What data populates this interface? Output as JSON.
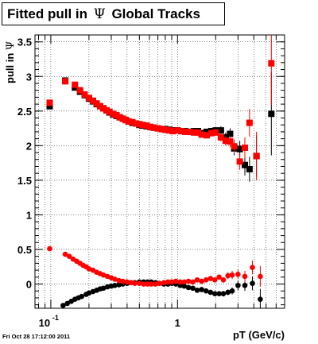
{
  "chart_data": {
    "type": "scatter",
    "title_prefix": "Fitted pull in",
    "title_symbol": "Ψ",
    "title_suffix": "Global Tracks",
    "xlabel": "pT (GeV/c)",
    "ylabel_prefix": "pull in",
    "ylabel_symbol": "Ψ",
    "xscale": "log",
    "xlim": [
      0.075,
      7.0
    ],
    "ylim": [
      -0.35,
      3.6
    ],
    "grid": true,
    "x_ticks": [
      {
        "value": 0.1,
        "base": "10",
        "exp": "-1"
      },
      {
        "value": 1,
        "label": "1"
      }
    ],
    "y_ticks": [
      0,
      0.5,
      1,
      1.5,
      2,
      2.5,
      3,
      3.5
    ],
    "y_tick_labels": [
      "0",
      "0.5",
      "1",
      "1.5",
      "2",
      "2.5",
      "3",
      "3.5"
    ],
    "series": [
      {
        "role": "sigma",
        "color": "#000000",
        "marker": "square",
        "points": [
          [
            0.098,
            2.57
          ],
          [
            0.13,
            2.94
          ],
          [
            0.155,
            2.84
          ],
          [
            0.17,
            2.78
          ],
          [
            0.185,
            2.73
          ],
          [
            0.2,
            2.68
          ],
          [
            0.215,
            2.64
          ],
          [
            0.23,
            2.6
          ],
          [
            0.245,
            2.57
          ],
          [
            0.26,
            2.54
          ],
          [
            0.275,
            2.51
          ],
          [
            0.29,
            2.48
          ],
          [
            0.31,
            2.45
          ],
          [
            0.33,
            2.43
          ],
          [
            0.35,
            2.41
          ],
          [
            0.37,
            2.39
          ],
          [
            0.39,
            2.37
          ],
          [
            0.41,
            2.35
          ],
          [
            0.44,
            2.33
          ],
          [
            0.47,
            2.32
          ],
          [
            0.5,
            2.3
          ],
          [
            0.53,
            2.29
          ],
          [
            0.57,
            2.28
          ],
          [
            0.61,
            2.27
          ],
          [
            0.65,
            2.26
          ],
          [
            0.7,
            2.25
          ],
          [
            0.75,
            2.24
          ],
          [
            0.8,
            2.24
          ],
          [
            0.86,
            2.23
          ],
          [
            0.92,
            2.22
          ],
          [
            1.0,
            2.22
          ],
          [
            1.07,
            2.21
          ],
          [
            1.15,
            2.21
          ],
          [
            1.25,
            2.2
          ],
          [
            1.35,
            2.21
          ],
          [
            1.45,
            2.21
          ],
          [
            1.55,
            2.18
          ],
          [
            1.7,
            2.2
          ],
          [
            1.85,
            2.21
          ],
          [
            2.0,
            2.22
          ],
          [
            2.2,
            2.22
          ],
          [
            2.4,
            2.12
          ],
          [
            2.6,
            2.17
          ],
          [
            2.8,
            1.96
          ],
          [
            3.1,
            1.95
          ],
          [
            3.4,
            1.72
          ],
          [
            3.7,
            1.66
          ],
          [
            4.2,
            1.85
          ],
          [
            5.5,
            2.46
          ]
        ],
        "errors": [
          0.02,
          0.02,
          0.01,
          0.01,
          0.01,
          0.01,
          0.01,
          0.01,
          0.01,
          0.01,
          0.01,
          0.01,
          0.01,
          0.01,
          0.01,
          0.01,
          0.01,
          0.01,
          0.01,
          0.01,
          0.01,
          0.01,
          0.01,
          0.01,
          0.01,
          0.01,
          0.01,
          0.01,
          0.01,
          0.01,
          0.01,
          0.01,
          0.01,
          0.02,
          0.02,
          0.02,
          0.02,
          0.03,
          0.04,
          0.05,
          0.06,
          0.07,
          0.08,
          0.1,
          0.12,
          0.15,
          0.18,
          0.3,
          0.6
        ]
      },
      {
        "role": "sigma",
        "color": "#ff0000",
        "marker": "square",
        "points": [
          [
            0.098,
            2.62
          ],
          [
            0.13,
            2.93
          ],
          [
            0.155,
            2.88
          ],
          [
            0.17,
            2.8
          ],
          [
            0.185,
            2.74
          ],
          [
            0.2,
            2.69
          ],
          [
            0.215,
            2.65
          ],
          [
            0.23,
            2.61
          ],
          [
            0.245,
            2.57
          ],
          [
            0.26,
            2.54
          ],
          [
            0.275,
            2.51
          ],
          [
            0.29,
            2.49
          ],
          [
            0.31,
            2.46
          ],
          [
            0.33,
            2.44
          ],
          [
            0.35,
            2.41
          ],
          [
            0.37,
            2.39
          ],
          [
            0.39,
            2.37
          ],
          [
            0.41,
            2.35
          ],
          [
            0.44,
            2.34
          ],
          [
            0.47,
            2.32
          ],
          [
            0.5,
            2.31
          ],
          [
            0.53,
            2.3
          ],
          [
            0.57,
            2.29
          ],
          [
            0.61,
            2.27
          ],
          [
            0.65,
            2.26
          ],
          [
            0.7,
            2.25
          ],
          [
            0.75,
            2.24
          ],
          [
            0.8,
            2.23
          ],
          [
            0.86,
            2.22
          ],
          [
            0.92,
            2.21
          ],
          [
            1.0,
            2.22
          ],
          [
            1.07,
            2.21
          ],
          [
            1.15,
            2.2
          ],
          [
            1.25,
            2.2
          ],
          [
            1.35,
            2.19
          ],
          [
            1.45,
            2.19
          ],
          [
            1.55,
            2.16
          ],
          [
            1.7,
            2.15
          ],
          [
            1.85,
            2.18
          ],
          [
            2.0,
            2.19
          ],
          [
            2.2,
            2.12
          ],
          [
            2.4,
            2.07
          ],
          [
            2.6,
            2.06
          ],
          [
            2.8,
            1.99
          ],
          [
            3.1,
            1.77
          ],
          [
            3.4,
            1.97
          ],
          [
            3.7,
            2.33
          ],
          [
            4.2,
            1.85
          ],
          [
            5.5,
            3.19
          ]
        ],
        "errors": [
          0.02,
          0.02,
          0.01,
          0.01,
          0.01,
          0.01,
          0.01,
          0.01,
          0.01,
          0.01,
          0.01,
          0.01,
          0.01,
          0.01,
          0.01,
          0.01,
          0.01,
          0.01,
          0.01,
          0.01,
          0.01,
          0.01,
          0.01,
          0.01,
          0.01,
          0.01,
          0.01,
          0.01,
          0.01,
          0.01,
          0.01,
          0.01,
          0.01,
          0.02,
          0.02,
          0.02,
          0.02,
          0.03,
          0.04,
          0.05,
          0.06,
          0.07,
          0.08,
          0.1,
          0.12,
          0.15,
          0.2,
          0.35,
          0.6
        ]
      },
      {
        "role": "mean",
        "color": "#000000",
        "marker": "circle",
        "points": [
          [
            0.125,
            -0.31
          ],
          [
            0.135,
            -0.28
          ],
          [
            0.145,
            -0.25
          ],
          [
            0.155,
            -0.22
          ],
          [
            0.165,
            -0.2
          ],
          [
            0.175,
            -0.18
          ],
          [
            0.19,
            -0.15
          ],
          [
            0.2,
            -0.13
          ],
          [
            0.215,
            -0.11
          ],
          [
            0.23,
            -0.09
          ],
          [
            0.245,
            -0.07
          ],
          [
            0.26,
            -0.06
          ],
          [
            0.28,
            -0.04
          ],
          [
            0.3,
            -0.03
          ],
          [
            0.32,
            -0.02
          ],
          [
            0.345,
            -0.01
          ],
          [
            0.37,
            0.0
          ],
          [
            0.4,
            0.01
          ],
          [
            0.43,
            0.02
          ],
          [
            0.46,
            0.02
          ],
          [
            0.5,
            0.03
          ],
          [
            0.54,
            0.03
          ],
          [
            0.58,
            0.03
          ],
          [
            0.62,
            0.03
          ],
          [
            0.67,
            0.02
          ],
          [
            0.72,
            0.01
          ],
          [
            0.78,
            0.0
          ],
          [
            0.84,
            0.0
          ],
          [
            0.9,
            0.01
          ],
          [
            0.97,
            0.0
          ],
          [
            1.05,
            -0.02
          ],
          [
            1.13,
            -0.03
          ],
          [
            1.22,
            -0.05
          ],
          [
            1.32,
            -0.06
          ],
          [
            1.43,
            -0.09
          ],
          [
            1.55,
            -0.08
          ],
          [
            1.68,
            -0.1
          ],
          [
            1.82,
            -0.12
          ],
          [
            1.97,
            -0.14
          ],
          [
            2.13,
            -0.14
          ],
          [
            2.3,
            -0.14
          ],
          [
            2.5,
            -0.12
          ],
          [
            2.7,
            -0.1
          ],
          [
            3.0,
            -0.02
          ],
          [
            3.4,
            -0.02
          ],
          [
            3.9,
            0.01
          ],
          [
            4.5,
            -0.22
          ]
        ],
        "errors": [
          0.01,
          0.01,
          0.01,
          0.01,
          0.01,
          0.01,
          0.01,
          0.01,
          0.01,
          0.01,
          0.01,
          0.01,
          0.01,
          0.01,
          0.01,
          0.01,
          0.01,
          0.01,
          0.01,
          0.01,
          0.01,
          0.01,
          0.01,
          0.01,
          0.01,
          0.01,
          0.01,
          0.01,
          0.01,
          0.01,
          0.01,
          0.01,
          0.01,
          0.02,
          0.02,
          0.02,
          0.02,
          0.03,
          0.03,
          0.03,
          0.04,
          0.04,
          0.05,
          0.07,
          0.08,
          0.1,
          0.15
        ]
      },
      {
        "role": "mean",
        "color": "#ff0000",
        "marker": "circle",
        "points": [
          [
            0.098,
            0.51
          ],
          [
            0.13,
            0.43
          ],
          [
            0.14,
            0.4
          ],
          [
            0.15,
            0.36
          ],
          [
            0.16,
            0.33
          ],
          [
            0.17,
            0.3
          ],
          [
            0.18,
            0.27
          ],
          [
            0.19,
            0.25
          ],
          [
            0.2,
            0.22
          ],
          [
            0.215,
            0.2
          ],
          [
            0.23,
            0.17
          ],
          [
            0.245,
            0.15
          ],
          [
            0.26,
            0.13
          ],
          [
            0.28,
            0.11
          ],
          [
            0.3,
            0.09
          ],
          [
            0.32,
            0.07
          ],
          [
            0.345,
            0.05
          ],
          [
            0.37,
            0.04
          ],
          [
            0.4,
            0.03
          ],
          [
            0.43,
            0.02
          ],
          [
            0.46,
            0.01
          ],
          [
            0.5,
            0.01
          ],
          [
            0.54,
            0.0
          ],
          [
            0.58,
            0.0
          ],
          [
            0.62,
            0.0
          ],
          [
            0.67,
            0.0
          ],
          [
            0.72,
            0.01
          ],
          [
            0.78,
            0.02
          ],
          [
            0.84,
            0.03
          ],
          [
            0.9,
            0.03
          ],
          [
            0.97,
            0.04
          ],
          [
            1.05,
            0.03
          ],
          [
            1.13,
            0.03
          ],
          [
            1.22,
            0.04
          ],
          [
            1.32,
            0.03
          ],
          [
            1.43,
            0.06
          ],
          [
            1.55,
            0.04
          ],
          [
            1.68,
            0.06
          ],
          [
            1.82,
            0.08
          ],
          [
            1.97,
            0.06
          ],
          [
            2.13,
            0.1
          ],
          [
            2.3,
            0.06
          ],
          [
            2.5,
            0.12
          ],
          [
            2.7,
            0.13
          ],
          [
            3.0,
            0.14
          ],
          [
            3.4,
            0.11
          ],
          [
            3.9,
            0.24
          ],
          [
            4.5,
            0.11
          ]
        ],
        "errors": [
          0.02,
          0.01,
          0.01,
          0.01,
          0.01,
          0.01,
          0.01,
          0.01,
          0.01,
          0.01,
          0.01,
          0.01,
          0.01,
          0.01,
          0.01,
          0.01,
          0.01,
          0.01,
          0.01,
          0.01,
          0.01,
          0.01,
          0.01,
          0.01,
          0.01,
          0.01,
          0.01,
          0.01,
          0.01,
          0.01,
          0.01,
          0.01,
          0.01,
          0.02,
          0.02,
          0.02,
          0.02,
          0.03,
          0.03,
          0.03,
          0.04,
          0.04,
          0.05,
          0.06,
          0.07,
          0.08,
          0.1,
          0.15
        ]
      }
    ]
  },
  "timestamp": "Fri Oct 28 17:12:00 2011"
}
